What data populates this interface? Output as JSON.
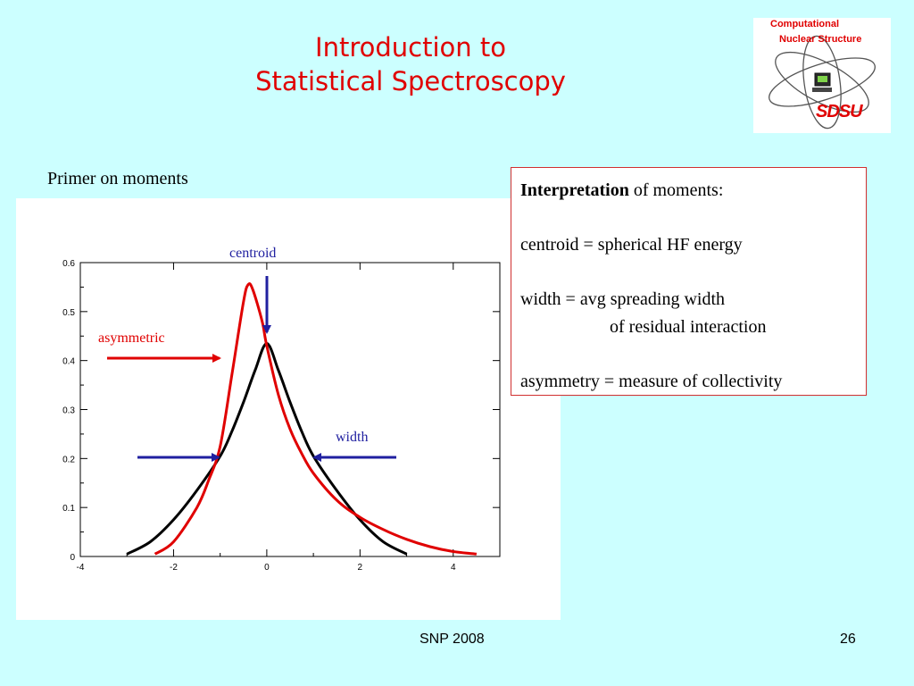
{
  "slide": {
    "title_line1": "Introduction to",
    "title_line2": "Statistical Spectroscopy",
    "subtitle": "Primer on moments",
    "footer_left": "SNP 2008",
    "page_number": "26"
  },
  "logo": {
    "line1": "Computational",
    "line2": "Nuclear Structure",
    "wordmark": "SDSU",
    "icon": "atom-orbit-computer-icon"
  },
  "interpretation": {
    "heading": "Interpretation",
    "heading_rest": " of moments:",
    "line1": "centroid = spherical HF energy",
    "line2": "width  = avg spreading width",
    "line3": "of residual interaction",
    "line4": "asymmetry = measure of collectivity"
  },
  "colors": {
    "background": "#ccffff",
    "title": "#e00000",
    "symmetric_curve": "#000000",
    "asymmetric_curve": "#e00000",
    "annotation_blue": "#2020a0",
    "annotation_red": "#e00000"
  },
  "chart_data": {
    "type": "line",
    "title": "",
    "xlabel": "",
    "ylabel": "",
    "xlim": [
      -4,
      5
    ],
    "ylim": [
      0,
      0.6
    ],
    "x_ticks": [
      -4,
      -2,
      0,
      2,
      4
    ],
    "y_ticks": [
      0,
      0.1,
      0.2,
      0.3,
      0.4,
      0.5,
      0.6
    ],
    "grid": false,
    "series": [
      {
        "color": "#000000",
        "x": [
          -3.0,
          -2.5,
          -2.0,
          -1.5,
          -1.0,
          -0.75,
          -0.5,
          -0.25,
          0.0,
          0.25,
          0.5,
          0.75,
          1.0,
          1.5,
          2.0,
          2.5,
          3.0
        ],
        "y": [
          0.005,
          0.03,
          0.075,
          0.135,
          0.205,
          0.255,
          0.315,
          0.38,
          0.435,
          0.38,
          0.315,
          0.255,
          0.205,
          0.135,
          0.075,
          0.03,
          0.005
        ]
      },
      {
        "color": "#e00000",
        "x": [
          -2.4,
          -2.0,
          -1.5,
          -1.25,
          -1.0,
          -0.75,
          -0.5,
          -0.4,
          -0.3,
          -0.1,
          0.0,
          0.25,
          0.5,
          0.75,
          1.0,
          1.5,
          2.0,
          2.5,
          3.0,
          3.5,
          4.0,
          4.5
        ],
        "y": [
          0.005,
          0.03,
          0.1,
          0.155,
          0.225,
          0.37,
          0.52,
          0.555,
          0.545,
          0.48,
          0.43,
          0.33,
          0.26,
          0.21,
          0.17,
          0.115,
          0.08,
          0.055,
          0.035,
          0.02,
          0.01,
          0.005
        ]
      }
    ],
    "annotations": {
      "centroid_label": "centroid",
      "asymmetric_label": "asymmetric",
      "width_label": "width"
    }
  }
}
